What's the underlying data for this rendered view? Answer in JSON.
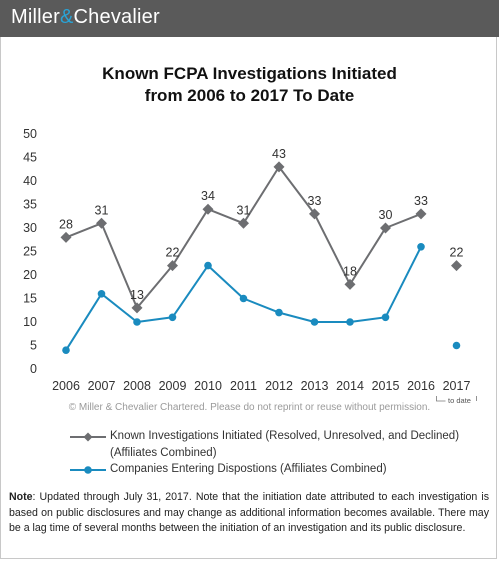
{
  "header": {
    "brand_left": "Miller",
    "brand_amp": "&",
    "brand_right": "Chevalier"
  },
  "title_line1": "Known FCPA Investigations Initiated",
  "title_line2": "from 2006 to 2017 To Date",
  "copyright": "© Miller & Chevalier Chartered. Please do not reprint or reuse without permission.",
  "legend": {
    "series1_line1": "Known Investigations Initiated (Resolved, Unresolved, and Declined)",
    "series1_line2": "(Affiliates Combined)",
    "series2": "Companies Entering Dispostions (Affiliates Combined)"
  },
  "note": {
    "label": "Note",
    "text": ": Updated through July 31, 2017. Note that the initiation date attributed to each investigation is based on public disclosures and may change as additional information becomes available. There may be a lag time of several months between the initiation of an investigation and its public disclosure."
  },
  "colors": {
    "series1": "#6d6e71",
    "series2": "#1a8bbf",
    "header": "#5a5a5a",
    "accent": "#29a3d6"
  },
  "chart_data": {
    "type": "line",
    "categories": [
      "2006",
      "2007",
      "2008",
      "2009",
      "2010",
      "2011",
      "2012",
      "2013",
      "2014",
      "2015",
      "2016",
      "2017"
    ],
    "category_sublabel": {
      "2017": "to date"
    },
    "ylim": [
      0,
      50
    ],
    "yticks": [
      0,
      5,
      10,
      15,
      20,
      25,
      30,
      35,
      40,
      45,
      50
    ],
    "grid": false,
    "legend_position": "bottom",
    "series": [
      {
        "name": "Known Investigations Initiated (Resolved, Unresolved, and Declined) (Affiliates Combined)",
        "marker": "diamond",
        "values": [
          28,
          31,
          13,
          22,
          34,
          31,
          43,
          33,
          18,
          30,
          33,
          22
        ],
        "data_labels": true,
        "connected_through": "2016"
      },
      {
        "name": "Companies Entering Dispostions (Affiliates Combined)",
        "marker": "circle",
        "values": [
          4,
          16,
          10,
          11,
          22,
          15,
          12,
          10,
          10,
          11,
          26,
          5
        ],
        "data_labels": false,
        "connected_through": "2016"
      }
    ]
  }
}
